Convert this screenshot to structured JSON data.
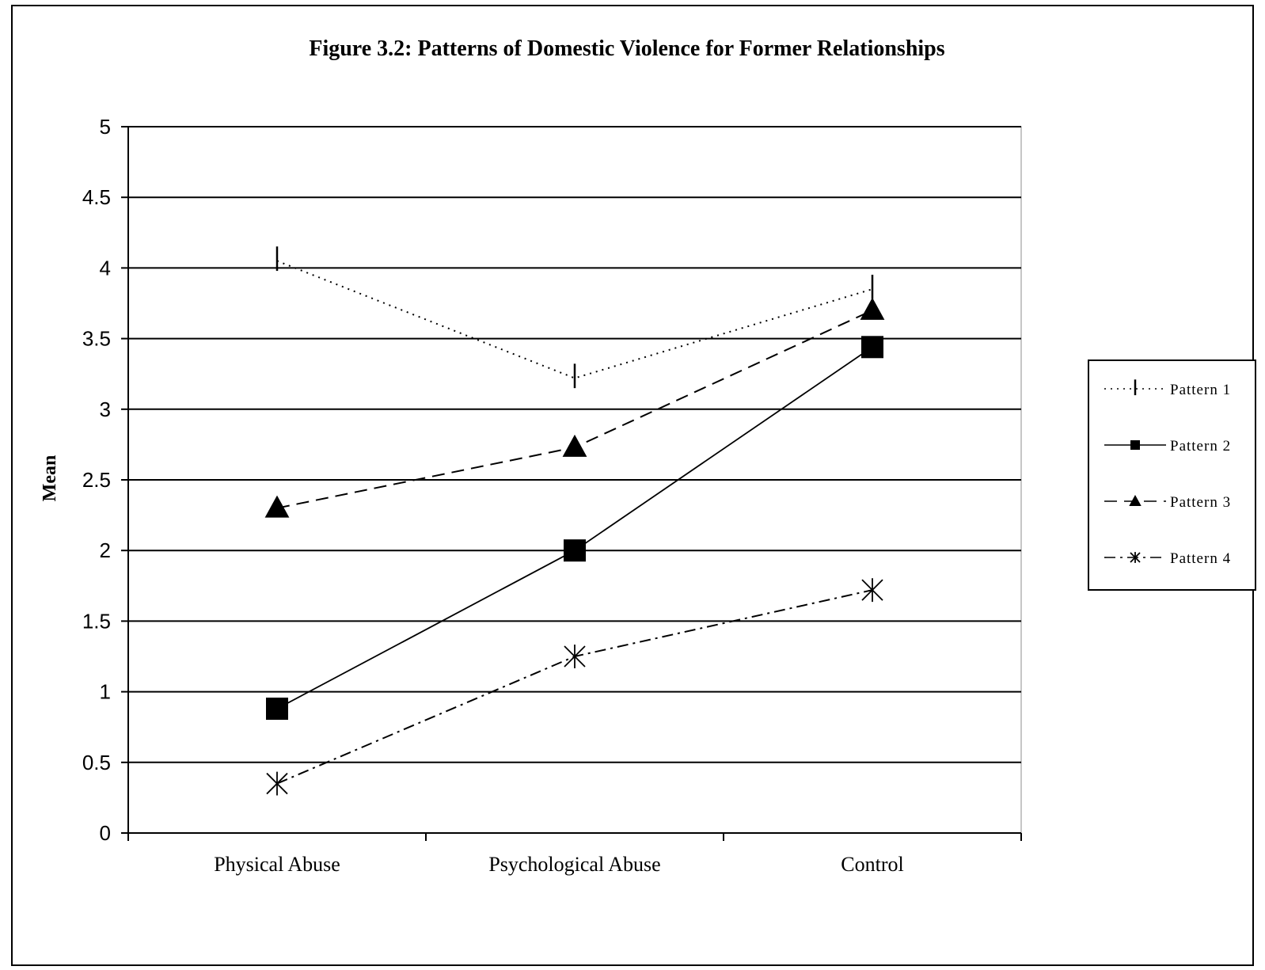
{
  "chart_data": {
    "type": "line",
    "title": "Figure 3.2: Patterns of Domestic Violence for Former Relationships",
    "xlabel": "",
    "ylabel": "Mean",
    "categories": [
      "Physical Abuse",
      "Psychological Abuse",
      "Control"
    ],
    "ylim": [
      0,
      5
    ],
    "yticks": [
      0,
      0.5,
      1,
      1.5,
      2,
      2.5,
      3,
      3.5,
      4,
      4.5,
      5
    ],
    "ytick_labels": [
      "0",
      "0.5",
      "1",
      "1.5",
      "2",
      "2.5",
      "3",
      "3.5",
      "4",
      "4.5",
      "5"
    ],
    "grid": "horizontal",
    "legend_position": "right",
    "series": [
      {
        "name": "Pattern 1",
        "values": [
          4.05,
          3.22,
          3.85
        ],
        "marker": "vertical-bar",
        "line_style": "dotted",
        "color": "#000000"
      },
      {
        "name": "Pattern 2",
        "values": [
          0.88,
          2.0,
          3.44
        ],
        "marker": "square",
        "line_style": "solid",
        "color": "#000000"
      },
      {
        "name": "Pattern 3",
        "values": [
          2.3,
          2.73,
          3.7
        ],
        "marker": "triangle",
        "line_style": "dashed",
        "color": "#000000"
      },
      {
        "name": "Pattern 4",
        "values": [
          0.35,
          1.25,
          1.72
        ],
        "marker": "asterisk",
        "line_style": "dash-dot",
        "color": "#000000"
      }
    ]
  }
}
